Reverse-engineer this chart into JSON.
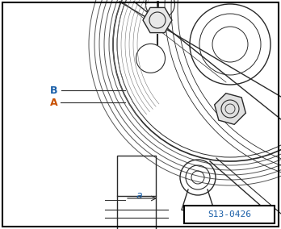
{
  "fig_width": 3.48,
  "fig_height": 2.84,
  "dpi": 100,
  "bg_color": "#ffffff",
  "border_color": "#000000",
  "label_B": "B",
  "label_A": "A",
  "label_a": "a",
  "label_B_color": "#1a5fa8",
  "label_A_color": "#c85000",
  "label_a_color": "#1a5fa8",
  "ref_box_text": "S13-0426",
  "ref_text_color": "#1a5fa8",
  "label_fontsize": 9,
  "ref_fontsize": 8,
  "line_color": "#2a2a2a",
  "light_gray": "#bbbbbb"
}
